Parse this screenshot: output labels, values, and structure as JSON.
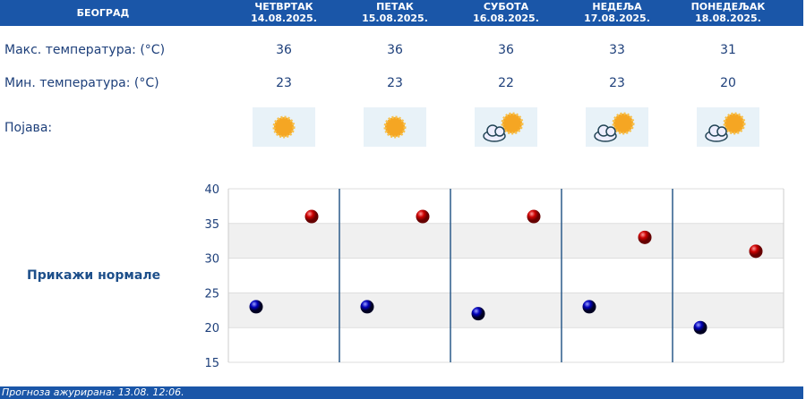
{
  "header": {
    "city": "БЕОГРАД",
    "days": [
      {
        "name": "ЧЕТВРТАК",
        "date": "14.08.2025.",
        "max": "36",
        "min": "23",
        "icon": "sunny-icon"
      },
      {
        "name": "ПЕТАК",
        "date": "15.08.2025.",
        "max": "36",
        "min": "23",
        "icon": "sunny-icon"
      },
      {
        "name": "СУБОТА",
        "date": "16.08.2025.",
        "max": "36",
        "min": "22",
        "icon": "sun-with-clouds-icon"
      },
      {
        "name": "НЕДЕЉА",
        "date": "17.08.2025.",
        "max": "33",
        "min": "23",
        "icon": "cloud-sun-rain-icon"
      },
      {
        "name": "ПОНЕДЕЉАК",
        "date": "18.08.2025.",
        "max": "31",
        "min": "20",
        "icon": "partly-cloudy-icon"
      }
    ]
  },
  "labels": {
    "max": "Макс. температура: (°C)",
    "min": "Мин. температура: (°C)",
    "phenomenon": "Појава:"
  },
  "show_normals": "Прикажи нормале",
  "chart_data": {
    "type": "scatter",
    "ylim": [
      15,
      40
    ],
    "yticks": [
      "15",
      "20",
      "25",
      "30",
      "35",
      "40"
    ],
    "series": [
      {
        "values": [
          36,
          36,
          36,
          33,
          31
        ],
        "color": "#cc0000"
      },
      {
        "values": [
          23,
          23,
          22,
          23,
          20
        ],
        "color": "#0000bb"
      }
    ]
  },
  "footer": "Прогноза ажурирана:  13.08.  12:06.",
  "colors": {
    "header": "#1a56a8",
    "text": "#1d3f7a"
  }
}
